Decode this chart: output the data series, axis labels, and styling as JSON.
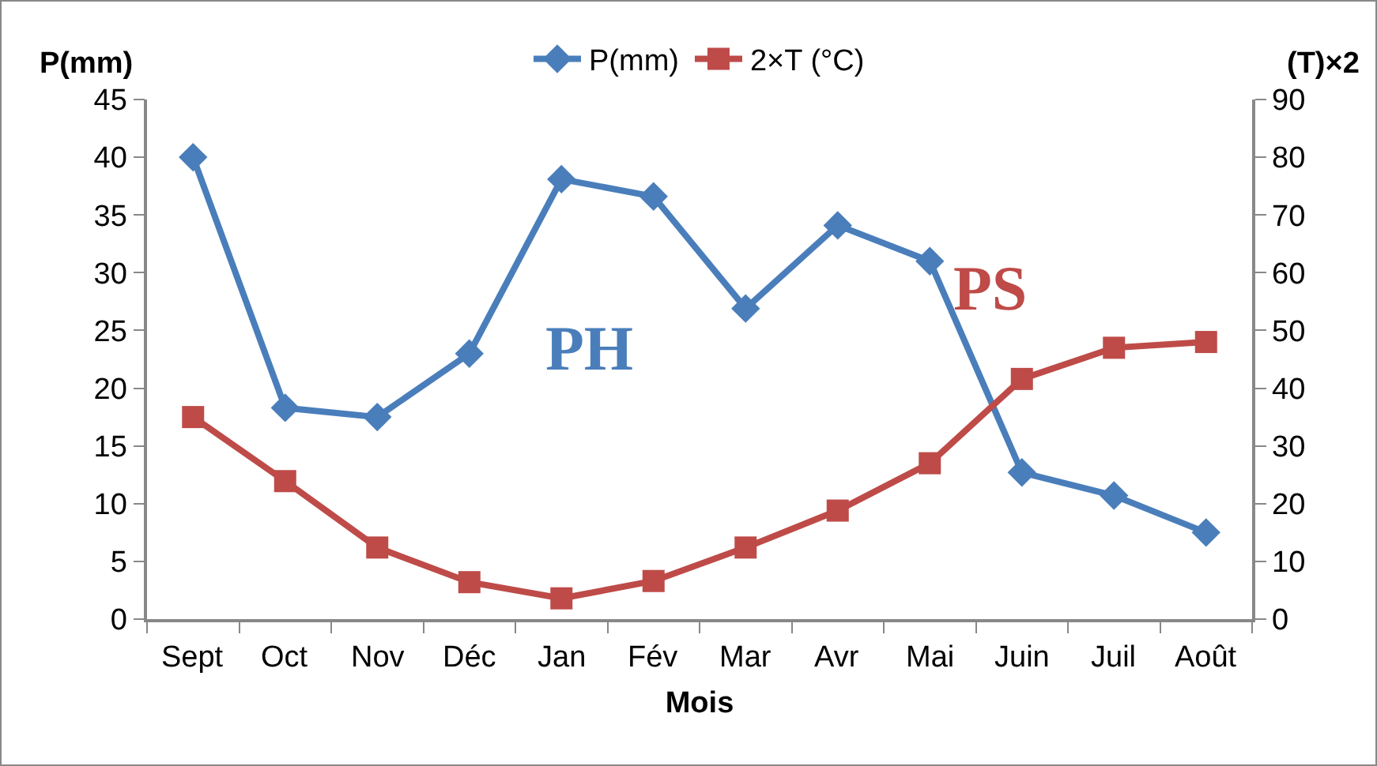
{
  "chart_data": {
    "type": "line",
    "xlabel": "Mois",
    "ylabel": "P(mm)",
    "y2label": "(T)×2",
    "categories": [
      "Sept",
      "Oct",
      "Nov",
      "Déc",
      "Jan",
      "Fév",
      "Mar",
      "Avr",
      "Mai",
      "Juin",
      "Juil",
      "Août"
    ],
    "series": [
      {
        "name": "P(mm)",
        "color": "#4a7ebb",
        "marker": "diamond",
        "values": [
          40,
          18.3,
          17.5,
          23,
          38.1,
          36.6,
          26.9,
          34.1,
          31,
          12.7,
          10.7,
          7.5
        ]
      },
      {
        "name": "2×T (°C)",
        "color": "#be4b48",
        "marker": "square",
        "axis": "y2",
        "values": [
          35,
          23.9,
          12.4,
          6.4,
          3.6,
          6.6,
          12.4,
          18.8,
          27,
          41.6,
          47,
          48
        ]
      }
    ],
    "ylim": [
      0,
      45
    ],
    "yticks": [
      0,
      5,
      10,
      15,
      20,
      25,
      30,
      35,
      40,
      45
    ],
    "y2lim": [
      0,
      90
    ],
    "y2ticks": [
      0,
      10,
      20,
      30,
      40,
      50,
      60,
      70,
      80,
      90
    ],
    "annotations": [
      "PH",
      "PS"
    ],
    "grid": false,
    "legend": "top",
    "line_style": "solid"
  }
}
